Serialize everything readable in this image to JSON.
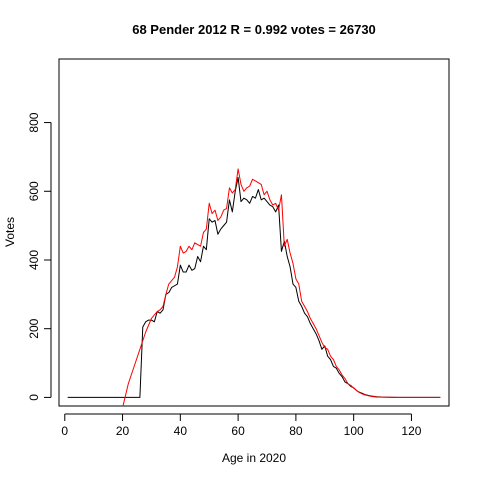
{
  "chart_data": {
    "type": "line",
    "title": "68 Pender 2012 R = 0.992 votes = 26730",
    "xlabel": "Age in 2020",
    "ylabel": "Votes",
    "xlim": [
      -2,
      133
    ],
    "ylim": [
      -25,
      985
    ],
    "x_ticks": [
      0,
      20,
      40,
      60,
      80,
      100,
      120
    ],
    "y_ticks": [
      0,
      200,
      400,
      600,
      800
    ],
    "grid": false,
    "colors": {
      "black": "#000000",
      "red": "#ff0000"
    },
    "series": [
      {
        "color": "#000000",
        "x": [
          1,
          25,
          26,
          27,
          28,
          29,
          30,
          31,
          32,
          33,
          34,
          35,
          36,
          37,
          38,
          39,
          40,
          41,
          42,
          43,
          44,
          45,
          46,
          47,
          48,
          49,
          50,
          51,
          52,
          53,
          54,
          55,
          56,
          57,
          58,
          59,
          60,
          61,
          62,
          63,
          64,
          65,
          66,
          67,
          68,
          69,
          70,
          71,
          72,
          73,
          74,
          75,
          76,
          77,
          78,
          79,
          80,
          81,
          82,
          83,
          84,
          85,
          86,
          87,
          88,
          89,
          90,
          91,
          92,
          93,
          94,
          95,
          96,
          97,
          98,
          99,
          100,
          101,
          102,
          103,
          104,
          105,
          106,
          107,
          108,
          110,
          115,
          120,
          125,
          130
        ],
        "y": [
          0,
          0,
          0,
          205,
          220,
          225,
          225,
          220,
          250,
          245,
          255,
          300,
          305,
          320,
          325,
          330,
          385,
          365,
          365,
          385,
          370,
          375,
          410,
          395,
          440,
          430,
          520,
          510,
          515,
          475,
          490,
          500,
          510,
          575,
          540,
          600,
          640,
          570,
          580,
          575,
          565,
          585,
          580,
          605,
          575,
          580,
          570,
          560,
          555,
          540,
          560,
          425,
          455,
          410,
          380,
          330,
          320,
          280,
          265,
          245,
          235,
          215,
          200,
          185,
          165,
          140,
          150,
          120,
          110,
          90,
          85,
          70,
          60,
          45,
          40,
          32,
          28,
          20,
          15,
          12,
          8,
          6,
          4,
          3,
          2,
          1,
          0,
          0,
          0,
          0
        ]
      },
      {
        "color": "#ff0000",
        "x": [
          20,
          22,
          24,
          26,
          28,
          30,
          31,
          32,
          33,
          34,
          35,
          36,
          37,
          38,
          39,
          40,
          41,
          42,
          43,
          44,
          45,
          46,
          47,
          48,
          49,
          50,
          51,
          52,
          53,
          54,
          55,
          56,
          57,
          58,
          59,
          60,
          61,
          62,
          63,
          64,
          65,
          66,
          67,
          68,
          69,
          70,
          71,
          72,
          73,
          74,
          75,
          76,
          77,
          78,
          79,
          80,
          81,
          82,
          83,
          84,
          85,
          86,
          87,
          88,
          89,
          90,
          91,
          92,
          93,
          94,
          95,
          96,
          97,
          98,
          99,
          100,
          101,
          102,
          103,
          104,
          105,
          106,
          107,
          108,
          110,
          115,
          120,
          125,
          130
        ],
        "y": [
          -30,
          40,
          90,
          140,
          190,
          230,
          240,
          250,
          255,
          265,
          300,
          330,
          340,
          350,
          380,
          440,
          420,
          425,
          440,
          430,
          450,
          445,
          440,
          480,
          490,
          565,
          535,
          545,
          515,
          525,
          545,
          550,
          610,
          595,
          605,
          665,
          620,
          600,
          610,
          615,
          635,
          630,
          625,
          620,
          590,
          600,
          575,
          560,
          565,
          545,
          590,
          440,
          460,
          420,
          390,
          345,
          330,
          280,
          265,
          250,
          230,
          215,
          200,
          180,
          160,
          145,
          140,
          120,
          110,
          90,
          80,
          65,
          55,
          40,
          35,
          27,
          20,
          14,
          10,
          7,
          5,
          3,
          2,
          1,
          1,
          0,
          0,
          0,
          0
        ]
      }
    ]
  }
}
